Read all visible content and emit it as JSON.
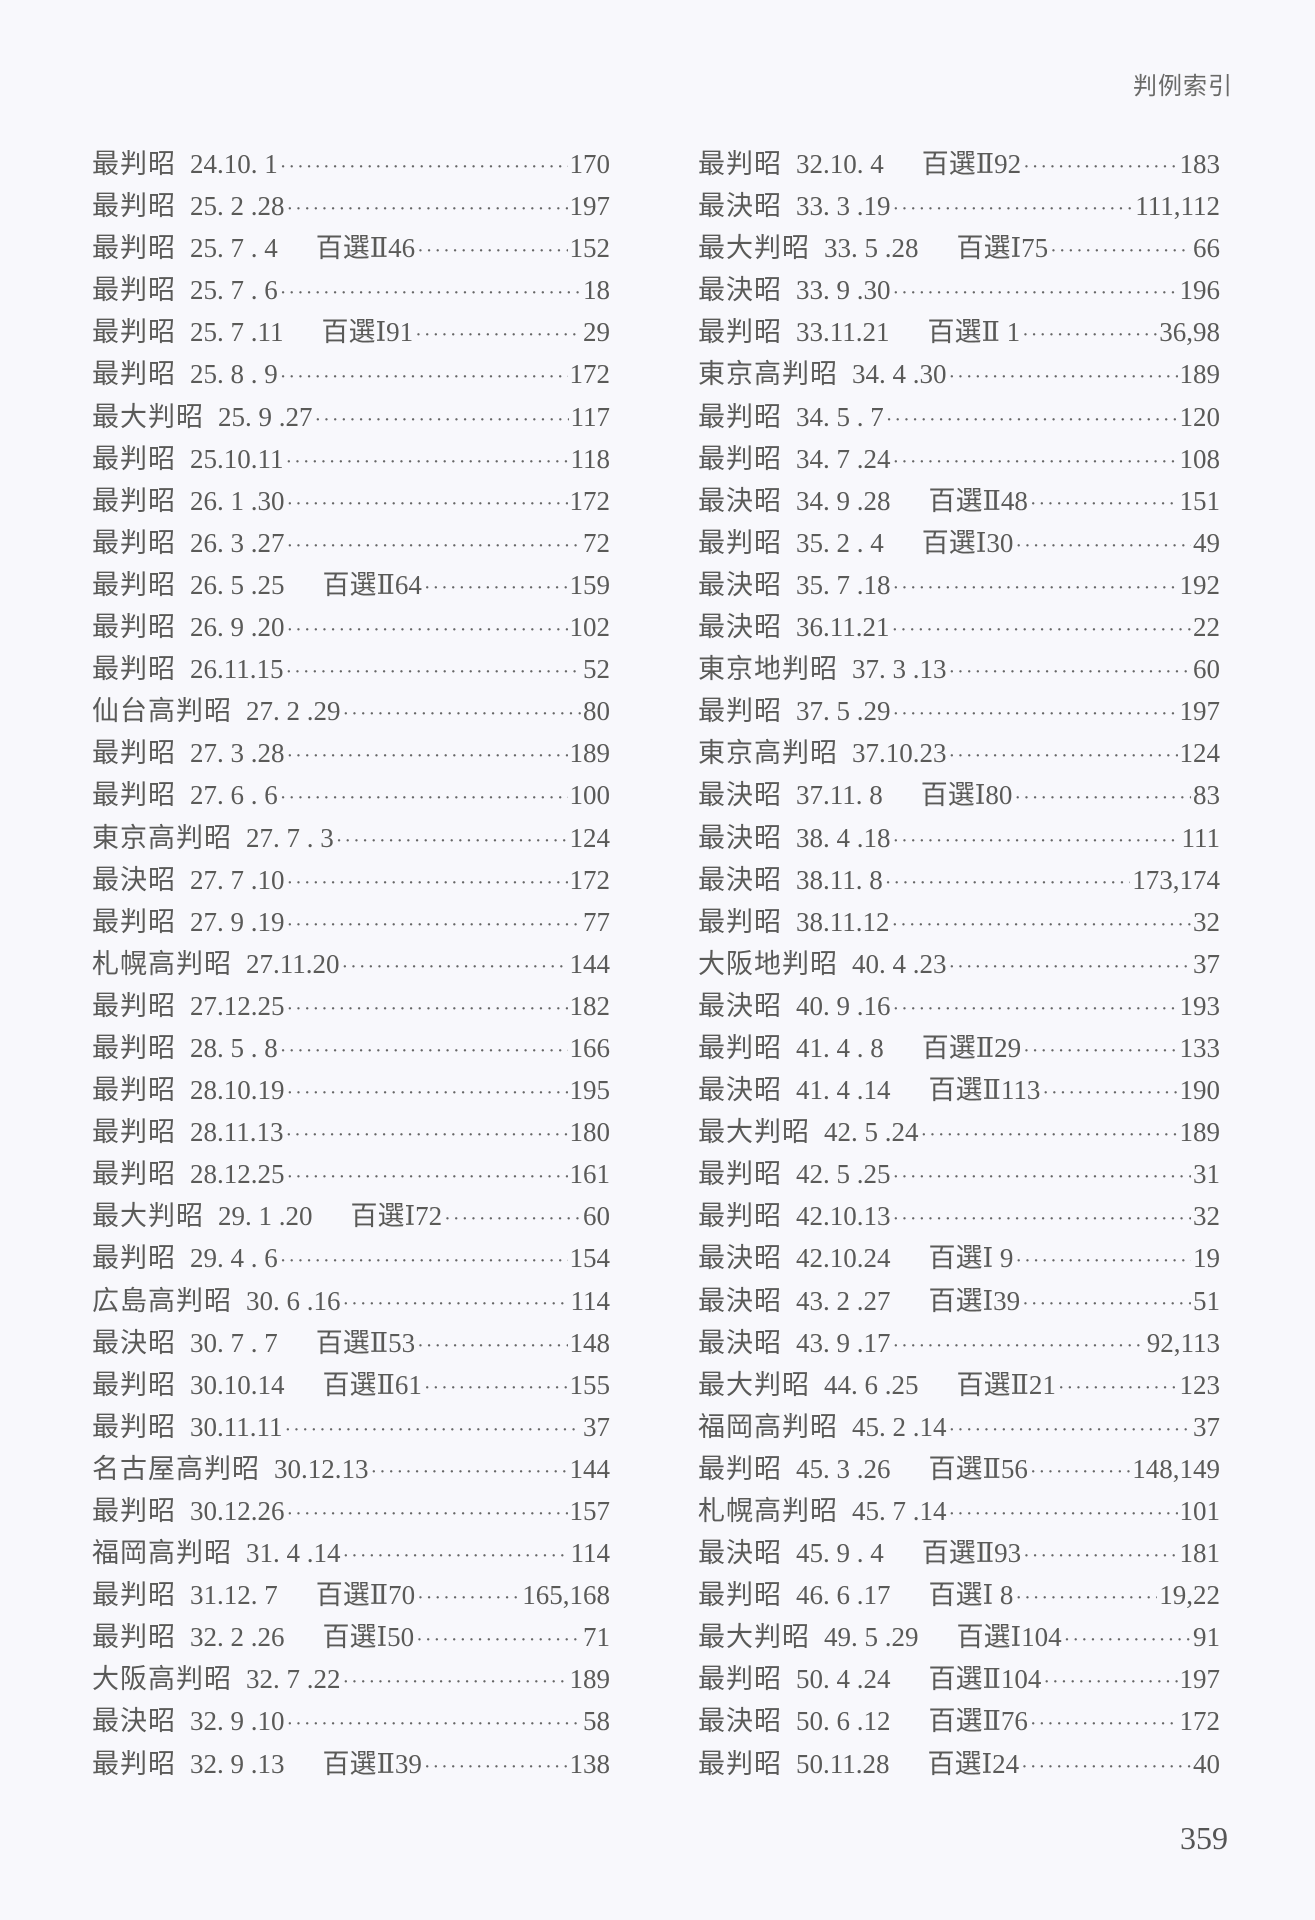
{
  "header": {
    "title": "判例索引"
  },
  "left_column": [
    {
      "court": "最判昭",
      "date": "24.10. 1",
      "hyakusen": "",
      "page": "170"
    },
    {
      "court": "最判昭",
      "date": "25. 2 .28",
      "hyakusen": "",
      "page": "197"
    },
    {
      "court": "最判昭",
      "date": "25. 7 . 4",
      "hyakusen": "百選Ⅱ46",
      "page": "152"
    },
    {
      "court": "最判昭",
      "date": "25. 7 . 6",
      "hyakusen": "",
      "page": "18"
    },
    {
      "court": "最判昭",
      "date": "25. 7 .11",
      "hyakusen": "百選Ⅰ91",
      "page": "29"
    },
    {
      "court": "最判昭",
      "date": "25. 8 . 9",
      "hyakusen": "",
      "page": "172"
    },
    {
      "court": "最大判昭",
      "date": "25. 9 .27",
      "hyakusen": "",
      "page": "117"
    },
    {
      "court": "最判昭",
      "date": "25.10.11",
      "hyakusen": "",
      "page": "118"
    },
    {
      "court": "最判昭",
      "date": "26. 1 .30",
      "hyakusen": "",
      "page": "172"
    },
    {
      "court": "最判昭",
      "date": "26. 3 .27",
      "hyakusen": "",
      "page": "72"
    },
    {
      "court": "最判昭",
      "date": "26. 5 .25",
      "hyakusen": "百選Ⅱ64",
      "page": "159"
    },
    {
      "court": "最判昭",
      "date": "26. 9 .20",
      "hyakusen": "",
      "page": "102"
    },
    {
      "court": "最判昭",
      "date": "26.11.15",
      "hyakusen": "",
      "page": "52"
    },
    {
      "court": "仙台高判昭",
      "date": "27. 2 .29",
      "hyakusen": "",
      "page": "80"
    },
    {
      "court": "最判昭",
      "date": "27. 3 .28",
      "hyakusen": "",
      "page": "189"
    },
    {
      "court": "最判昭",
      "date": "27. 6 . 6",
      "hyakusen": "",
      "page": "100"
    },
    {
      "court": "東京高判昭",
      "date": "27. 7 . 3",
      "hyakusen": "",
      "page": "124"
    },
    {
      "court": "最決昭",
      "date": "27. 7 .10",
      "hyakusen": "",
      "page": "172"
    },
    {
      "court": "最判昭",
      "date": "27. 9 .19",
      "hyakusen": "",
      "page": "77"
    },
    {
      "court": "札幌高判昭",
      "date": "27.11.20",
      "hyakusen": "",
      "page": "144"
    },
    {
      "court": "最判昭",
      "date": "27.12.25",
      "hyakusen": "",
      "page": "182"
    },
    {
      "court": "最判昭",
      "date": "28. 5 . 8",
      "hyakusen": "",
      "page": "166"
    },
    {
      "court": "最判昭",
      "date": "28.10.19",
      "hyakusen": "",
      "page": "195"
    },
    {
      "court": "最判昭",
      "date": "28.11.13",
      "hyakusen": "",
      "page": "180"
    },
    {
      "court": "最判昭",
      "date": "28.12.25",
      "hyakusen": "",
      "page": "161"
    },
    {
      "court": "最大判昭",
      "date": "29. 1 .20",
      "hyakusen": "百選Ⅰ72",
      "page": "60"
    },
    {
      "court": "最判昭",
      "date": "29. 4 . 6",
      "hyakusen": "",
      "page": "154"
    },
    {
      "court": "広島高判昭",
      "date": "30. 6 .16",
      "hyakusen": "",
      "page": "114"
    },
    {
      "court": "最決昭",
      "date": "30. 7 . 7",
      "hyakusen": "百選Ⅱ53",
      "page": "148"
    },
    {
      "court": "最判昭",
      "date": "30.10.14",
      "hyakusen": "百選Ⅱ61",
      "page": "155"
    },
    {
      "court": "最判昭",
      "date": "30.11.11",
      "hyakusen": "",
      "page": "37"
    },
    {
      "court": "名古屋高判昭",
      "date": "30.12.13",
      "hyakusen": "",
      "page": "144"
    },
    {
      "court": "最判昭",
      "date": "30.12.26",
      "hyakusen": "",
      "page": "157"
    },
    {
      "court": "福岡高判昭",
      "date": "31. 4 .14",
      "hyakusen": "",
      "page": "114"
    },
    {
      "court": "最判昭",
      "date": "31.12. 7",
      "hyakusen": "百選Ⅱ70",
      "page": "165,168"
    },
    {
      "court": "最判昭",
      "date": "32. 2 .26",
      "hyakusen": "百選Ⅰ50",
      "page": "71"
    },
    {
      "court": "大阪高判昭",
      "date": "32. 7 .22",
      "hyakusen": "",
      "page": "189"
    },
    {
      "court": "最決昭",
      "date": "32. 9 .10",
      "hyakusen": "",
      "page": "58"
    },
    {
      "court": "最判昭",
      "date": "32. 9 .13",
      "hyakusen": "百選Ⅱ39",
      "page": "138"
    }
  ],
  "right_column": [
    {
      "court": "最判昭",
      "date": "32.10. 4",
      "hyakusen": "百選Ⅱ92",
      "page": "183"
    },
    {
      "court": "最決昭",
      "date": "33. 3 .19",
      "hyakusen": "",
      "page": "111,112"
    },
    {
      "court": "最大判昭",
      "date": "33. 5 .28",
      "hyakusen": "百選Ⅰ75",
      "page": "66"
    },
    {
      "court": "最決昭",
      "date": "33. 9 .30",
      "hyakusen": "",
      "page": "196"
    },
    {
      "court": "最判昭",
      "date": "33.11.21",
      "hyakusen": "百選Ⅱ 1",
      "page": "36,98"
    },
    {
      "court": "東京高判昭",
      "date": "34. 4 .30",
      "hyakusen": "",
      "page": "189"
    },
    {
      "court": "最判昭",
      "date": "34. 5 . 7",
      "hyakusen": "",
      "page": "120"
    },
    {
      "court": "最判昭",
      "date": "34. 7 .24",
      "hyakusen": "",
      "page": "108"
    },
    {
      "court": "最決昭",
      "date": "34. 9 .28",
      "hyakusen": "百選Ⅱ48",
      "page": "151"
    },
    {
      "court": "最判昭",
      "date": "35. 2 . 4",
      "hyakusen": "百選Ⅰ30",
      "page": "49"
    },
    {
      "court": "最決昭",
      "date": "35. 7 .18",
      "hyakusen": "",
      "page": "192"
    },
    {
      "court": "最決昭",
      "date": "36.11.21",
      "hyakusen": "",
      "page": "22"
    },
    {
      "court": "東京地判昭",
      "date": "37. 3 .13",
      "hyakusen": "",
      "page": "60"
    },
    {
      "court": "最判昭",
      "date": "37. 5 .29",
      "hyakusen": "",
      "page": "197"
    },
    {
      "court": "東京高判昭",
      "date": "37.10.23",
      "hyakusen": "",
      "page": "124"
    },
    {
      "court": "最決昭",
      "date": "37.11. 8",
      "hyakusen": "百選Ⅰ80",
      "page": "83"
    },
    {
      "court": "最決昭",
      "date": "38. 4 .18",
      "hyakusen": "",
      "page": "111"
    },
    {
      "court": "最決昭",
      "date": "38.11. 8",
      "hyakusen": "",
      "page": "173,174"
    },
    {
      "court": "最判昭",
      "date": "38.11.12",
      "hyakusen": "",
      "page": "32"
    },
    {
      "court": "大阪地判昭",
      "date": "40. 4 .23",
      "hyakusen": "",
      "page": "37"
    },
    {
      "court": "最決昭",
      "date": "40. 9 .16",
      "hyakusen": "",
      "page": "193"
    },
    {
      "court": "最判昭",
      "date": "41. 4 . 8",
      "hyakusen": "百選Ⅱ29",
      "page": "133"
    },
    {
      "court": "最決昭",
      "date": "41. 4 .14",
      "hyakusen": "百選Ⅱ113",
      "page": "190"
    },
    {
      "court": "最大判昭",
      "date": "42. 5 .24",
      "hyakusen": "",
      "page": "189"
    },
    {
      "court": "最判昭",
      "date": "42. 5 .25",
      "hyakusen": "",
      "page": "31"
    },
    {
      "court": "最判昭",
      "date": "42.10.13",
      "hyakusen": "",
      "page": "32"
    },
    {
      "court": "最決昭",
      "date": "42.10.24",
      "hyakusen": "百選Ⅰ 9",
      "page": "19"
    },
    {
      "court": "最決昭",
      "date": "43. 2 .27",
      "hyakusen": "百選Ⅰ39",
      "page": "51"
    },
    {
      "court": "最決昭",
      "date": "43. 9 .17",
      "hyakusen": "",
      "page": "92,113"
    },
    {
      "court": "最大判昭",
      "date": "44. 6 .25",
      "hyakusen": "百選Ⅱ21",
      "page": "123"
    },
    {
      "court": "福岡高判昭",
      "date": "45. 2 .14",
      "hyakusen": "",
      "page": "37"
    },
    {
      "court": "最判昭",
      "date": "45. 3 .26",
      "hyakusen": "百選Ⅱ56",
      "page": "148,149"
    },
    {
      "court": "札幌高判昭",
      "date": "45. 7 .14",
      "hyakusen": "",
      "page": "101"
    },
    {
      "court": "最決昭",
      "date": "45. 9 . 4",
      "hyakusen": "百選Ⅱ93",
      "page": "181"
    },
    {
      "court": "最判昭",
      "date": "46. 6 .17",
      "hyakusen": "百選Ⅰ 8",
      "page": "19,22"
    },
    {
      "court": "最大判昭",
      "date": "49. 5 .29",
      "hyakusen": "百選Ⅰ104",
      "page": "91"
    },
    {
      "court": "最判昭",
      "date": "50. 4 .24",
      "hyakusen": "百選Ⅱ104",
      "page": "197"
    },
    {
      "court": "最決昭",
      "date": "50. 6 .12",
      "hyakusen": "百選Ⅱ76",
      "page": "172"
    },
    {
      "court": "最判昭",
      "date": "50.11.28",
      "hyakusen": "百選Ⅰ24",
      "page": "40"
    }
  ],
  "footer": {
    "page_number": "359"
  }
}
